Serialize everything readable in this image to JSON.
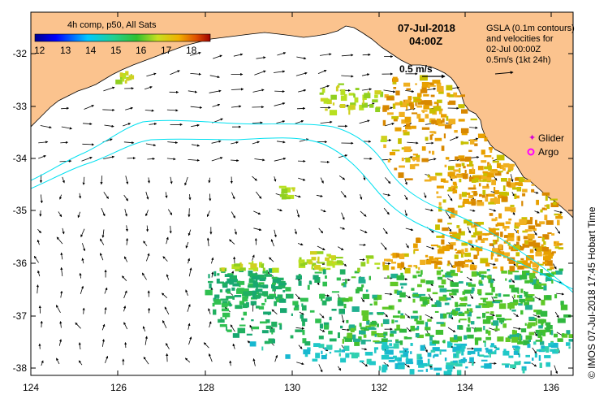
{
  "map": {
    "colorbar": {
      "title": "4h comp, p50, All Sats",
      "ticks": [
        "12",
        "13",
        "14",
        "15",
        "16",
        "17",
        "18"
      ]
    },
    "date": "07-Jul-2018",
    "time": "04:00Z",
    "scale_arrow_label": "0.5 m/s",
    "gsla_note": {
      "line1": "GSLA (0.1m contours)",
      "line2": "and velocities for",
      "line3": "02-Jul 00:00Z",
      "line4": "0.5m/s (1kt 24h)"
    },
    "legend": {
      "glider": "Glider",
      "argo": "Argo"
    },
    "y_ticks": [
      "-32",
      "-33",
      "-34",
      "-35",
      "-36",
      "-37",
      "-38"
    ],
    "x_ticks": [
      "124",
      "126",
      "128",
      "130",
      "132",
      "134",
      "136"
    ],
    "credit": "© IMOS 07-Jul-2018 17:45 Hobart Time",
    "colors": {
      "land": "#fbc38e",
      "ocean": "#ffffff",
      "contour": "#00e0f0",
      "glider": "#d400d4",
      "argo": "#ff00ff"
    }
  }
}
